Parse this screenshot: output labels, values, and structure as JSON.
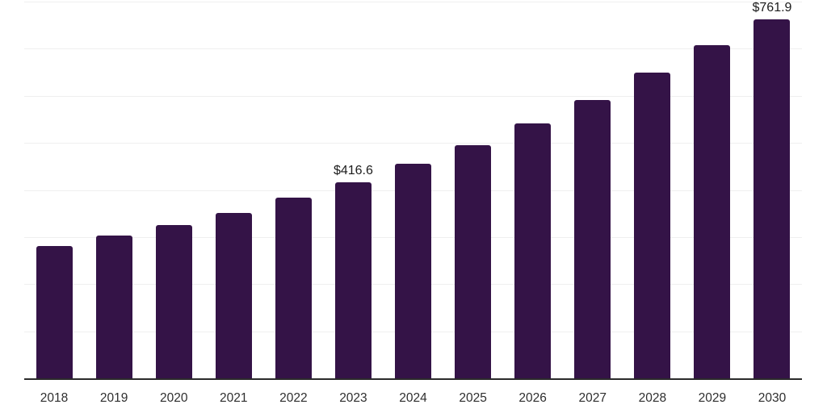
{
  "chart_data": {
    "type": "bar",
    "title": "",
    "xlabel": "",
    "ylabel": "",
    "categories": [
      "2018",
      "2019",
      "2020",
      "2021",
      "2022",
      "2023",
      "2024",
      "2025",
      "2026",
      "2027",
      "2028",
      "2029",
      "2030"
    ],
    "values": [
      281.0,
      303.5,
      325.5,
      351.0,
      384.5,
      416.6,
      455.5,
      494.5,
      541.0,
      591.5,
      649.5,
      707.5,
      761.9
    ],
    "data_labels": {
      "2023": "$416.6",
      "2030": "$761.9"
    },
    "value_prefix": "$",
    "ylim": [
      0,
      800
    ],
    "grid_step": 100,
    "grid": "horizontal gridlines only, no y-axis tick labels",
    "legend_position": "none",
    "colors": {
      "bar": "#341347",
      "grid_line": "#efefef",
      "axis_line": "#2b2b2b",
      "tick_label": "#2e2e2e",
      "value_label": "#1c1c1c",
      "background": "#ffffff"
    }
  }
}
